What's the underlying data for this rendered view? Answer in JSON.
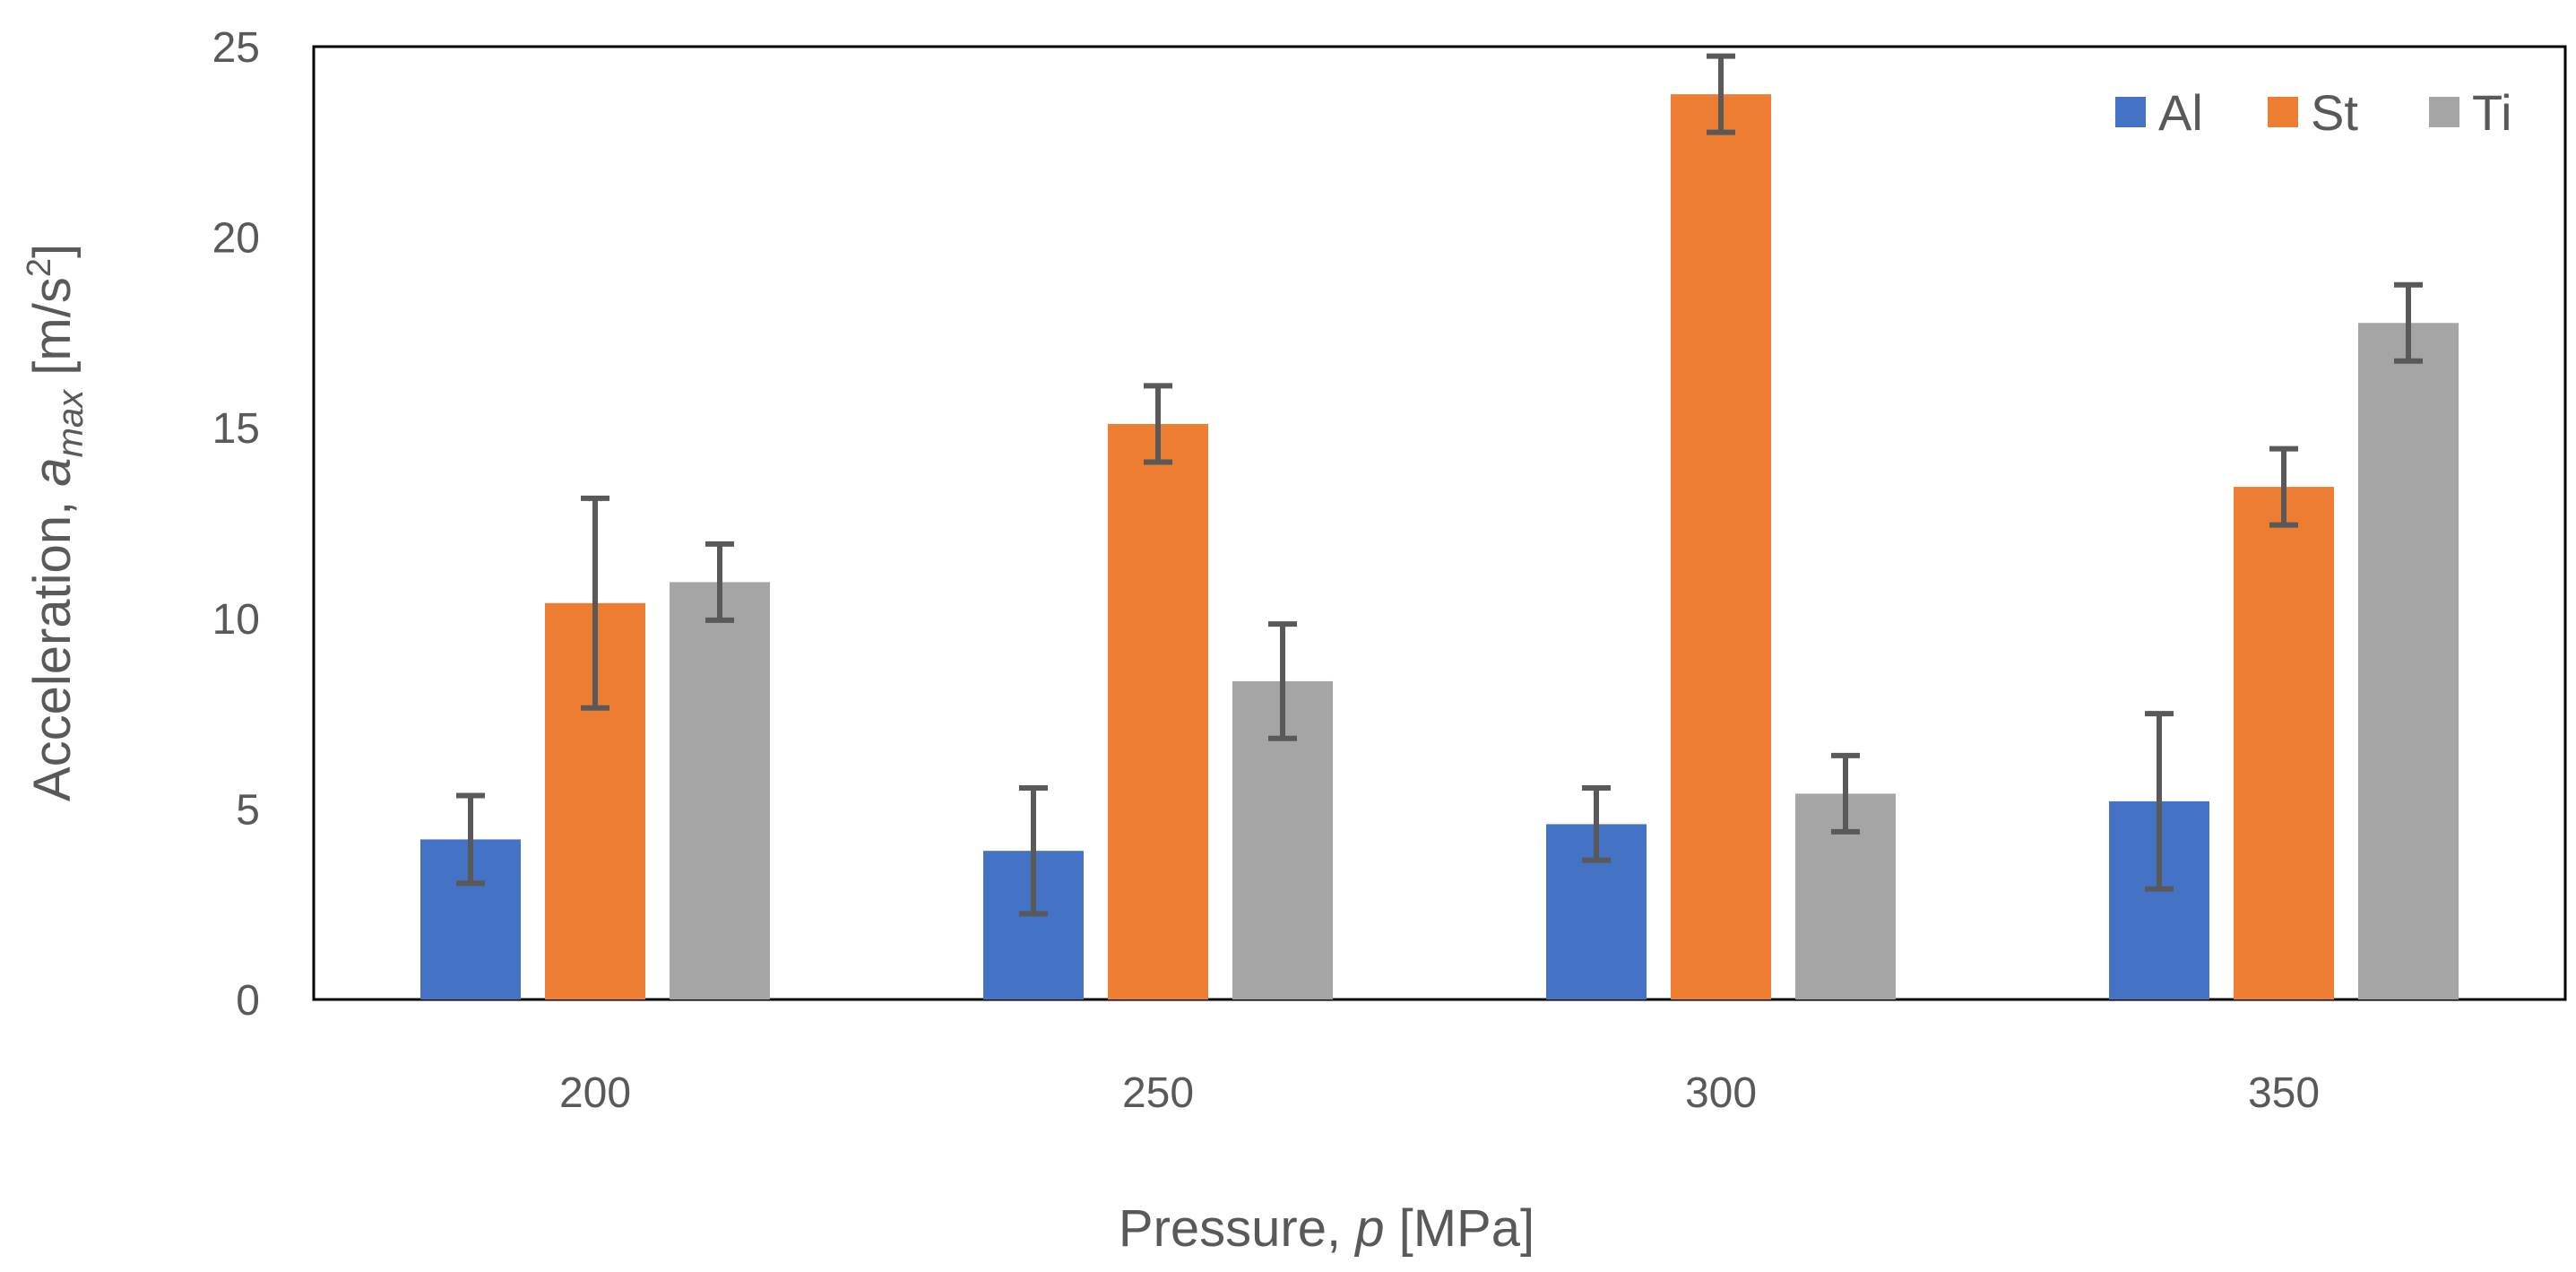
{
  "chart_data": {
    "type": "bar",
    "categories": [
      "200",
      "250",
      "300",
      "350"
    ],
    "series": [
      {
        "name": "Al",
        "color": "#4472C4",
        "values": [
          4.2,
          3.9,
          4.6,
          5.2
        ],
        "errors": [
          1.15,
          1.65,
          0.95,
          2.3
        ]
      },
      {
        "name": "St",
        "color": "#ED7D31",
        "values": [
          10.4,
          15.1,
          23.75,
          13.45
        ],
        "errors": [
          2.75,
          1.0,
          1.0,
          1.0
        ]
      },
      {
        "name": "Ti",
        "color": "#A5A5A5",
        "values": [
          10.95,
          8.35,
          5.4,
          17.75
        ],
        "errors": [
          1.0,
          1.5,
          1.0,
          1.0
        ]
      }
    ],
    "xlabel": {
      "prefix": "Pressure, ",
      "var": "p",
      "suffix": " [MPa]"
    },
    "ylabel": {
      "prefix": "Acceleration, ",
      "var": "a",
      "sub": "max",
      "unit_open": " [m/s",
      "unit_sup": "2",
      "unit_close": "]"
    },
    "ylim": [
      0,
      25
    ],
    "yticks": [
      "0",
      "5",
      "10",
      "15",
      "20",
      "25"
    ],
    "grid": false,
    "legend_position": "top-right",
    "error_bar_color": "#595959"
  }
}
